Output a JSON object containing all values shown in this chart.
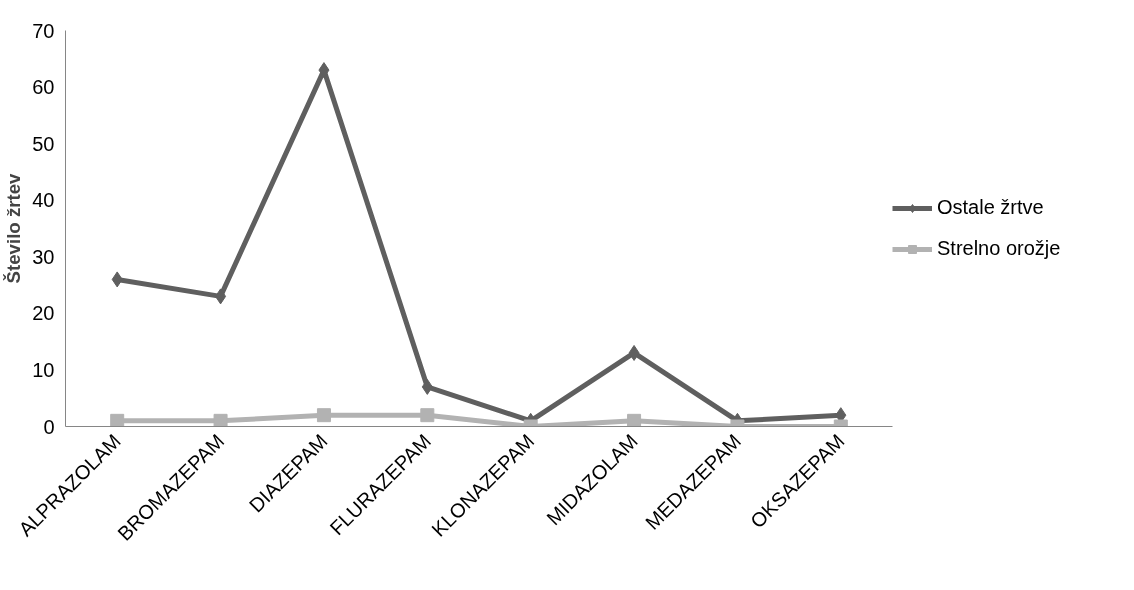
{
  "chart_data": {
    "type": "line",
    "ylabel": "Število žrtev",
    "categories": [
      "ALPRAZOLAM",
      "BROMAZEPAM",
      "DIAZEPAM",
      "FLURAZEPAM",
      "KLONAZEPAM",
      "MIDAZOLAM",
      "MEDAZEPAM",
      "OKSAZEPAM"
    ],
    "series": [
      {
        "name": "Ostale žrtve",
        "color": "#5f5f5f",
        "marker": "diamond",
        "values": [
          26,
          23,
          63,
          7,
          1,
          13,
          1,
          2
        ]
      },
      {
        "name": "Strelno orožje",
        "color": "#b2b2b2",
        "marker": "square",
        "values": [
          1,
          1,
          2,
          2,
          0,
          1,
          0,
          0
        ]
      }
    ],
    "ylim": [
      0,
      70
    ],
    "yticks": [
      0,
      10,
      20,
      30,
      40,
      50,
      60,
      70
    ],
    "grid": false,
    "legend": "right"
  }
}
